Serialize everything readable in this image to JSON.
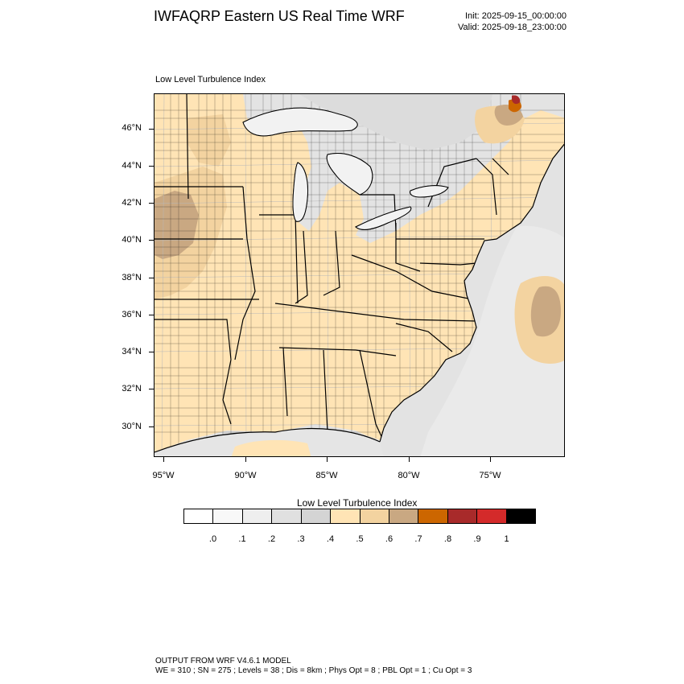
{
  "header": {
    "title": "IWFAQRP Eastern US Real Time WRF",
    "init": "Init: 2025-09-15_00:00:00",
    "valid": "Valid: 2025-09-18_23:00:00"
  },
  "plot": {
    "label": "Low Level Turbulence Index",
    "lat_labels": [
      "46°N",
      "44°N",
      "42°N",
      "40°N",
      "38°N",
      "36°N",
      "34°N",
      "32°N",
      "30°N"
    ],
    "lon_labels": [
      "95°W",
      "90°W",
      "85°W",
      "80°W",
      "75°W"
    ]
  },
  "colorbar": {
    "title": "Low Level Turbulence Index",
    "colors": [
      "#ffffff",
      "#f8f8f8",
      "#eeeeee",
      "#e0e0e0",
      "#d4d4d4",
      "#ffe4b5",
      "#f3d3a0",
      "#c9a882",
      "#cc6600",
      "#a82a2a",
      "#d42a2a",
      "#000000"
    ],
    "tick_labels": [
      ".0",
      ".1",
      ".2",
      ".3",
      ".4",
      ".5",
      ".6",
      ".7",
      ".8",
      ".9",
      "1"
    ]
  },
  "map_colors": {
    "land": "#ffe4b5",
    "land_mid": "#f3d3a0",
    "land_high": "#c9a882",
    "water_light": "#eeeeee",
    "water_mid": "#e0e0e0",
    "water_dark": "#d4d4d4",
    "hot": "#cc6600",
    "very_hot": "#a82a2a"
  },
  "footer": {
    "line1": "OUTPUT FROM WRF V4.6.1 MODEL",
    "line2": "WE = 310 ; SN = 275 ; Levels = 38 ; Dis = 8km ; Phys Opt = 8 ; PBL Opt = 1 ; Cu Opt = 3"
  }
}
